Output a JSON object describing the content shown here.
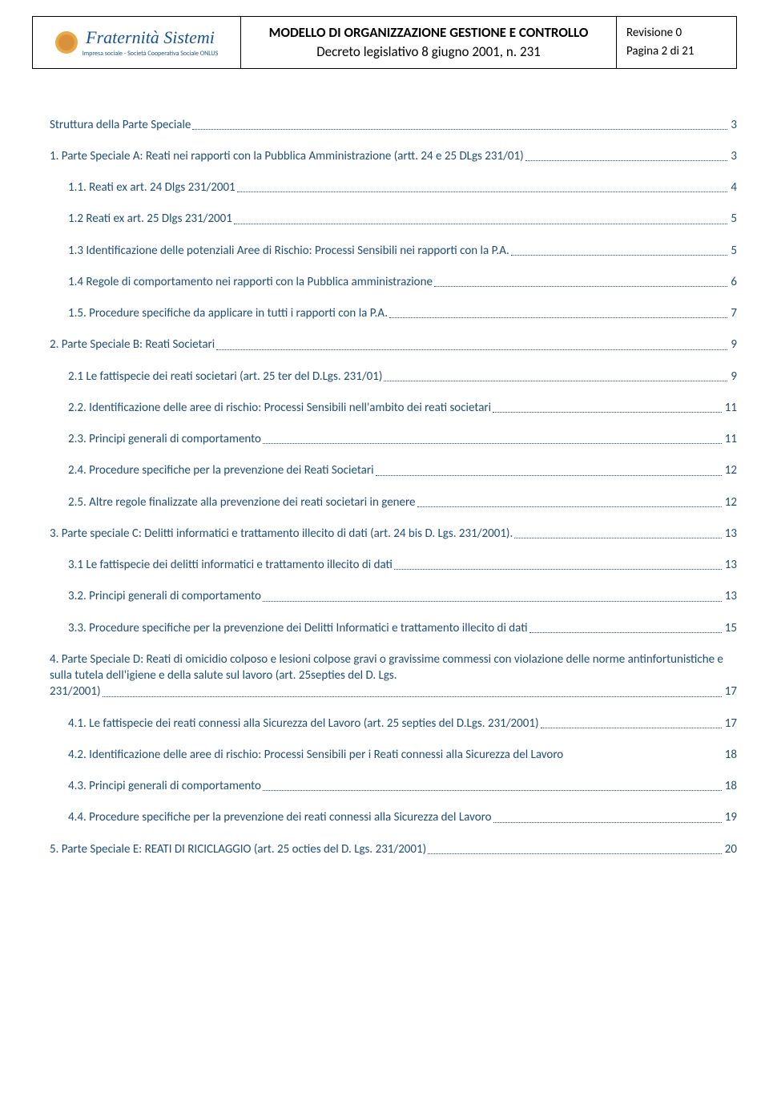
{
  "header": {
    "logo_main": "Fraternità Sistemi",
    "logo_sub": "Impresa sociale - Società Cooperativa Sociale ONLUS",
    "title_line1": "MODELLO DI ORGANIZZAZIONE GESTIONE E CONTROLLO",
    "title_line2": "Decreto legislativo 8 giugno 2001, n. 231",
    "revision": "Revisione  0",
    "page_info": "Pagina 2 di 21"
  },
  "toc": [
    {
      "level": 0,
      "title": "Struttura della Parte Speciale",
      "page": "3"
    },
    {
      "level": 0,
      "title": "1. Parte Speciale A: Reati nei rapporti con la Pubblica Amministrazione (artt. 24 e 25  DLgs  231/01)",
      "page": "3"
    },
    {
      "level": 1,
      "title": "1.1. Reati ex art. 24 Dlgs 231/2001",
      "page": "4"
    },
    {
      "level": 1,
      "title": "1.2 Reati ex art. 25 Dlgs 231/2001",
      "page": "5"
    },
    {
      "level": 1,
      "title": "1.3 Identificazione delle potenziali Aree di Rischio: Processi Sensibili nei rapporti con la P.A. ",
      "page": "5"
    },
    {
      "level": 1,
      "title": "1.4 Regole di comportamento nei rapporti con la Pubblica amministrazione",
      "page": "6"
    },
    {
      "level": 1,
      "title": "1.5. Procedure specifiche da applicare in tutti i rapporti con la P.A. ",
      "page": "7"
    },
    {
      "level": 0,
      "title": "2. Parte Speciale B: Reati Societari",
      "page": "9"
    },
    {
      "level": 1,
      "title": "2.1 Le fattispecie dei reati societari (art. 25 ter  del D.Lgs. 231/01)",
      "page": "9"
    },
    {
      "level": 1,
      "title": "2.2. Identificazione delle aree di rischio: Processi Sensibili nell'ambito dei reati societari",
      "page": "11"
    },
    {
      "level": 1,
      "title": "2.3. Principi generali di comportamento",
      "page": "11"
    },
    {
      "level": 1,
      "title": "2.4. Procedure specifiche per la prevenzione dei Reati Societari",
      "page": "12"
    },
    {
      "level": 1,
      "title": "2.5. Altre regole finalizzate alla prevenzione dei reati societari in genere",
      "page": "12"
    },
    {
      "level": 0,
      "title": "3. Parte speciale C: Delitti informatici e trattamento illecito di dati (art. 24 bis D. Lgs. 231/2001).",
      "page": "13"
    },
    {
      "level": 1,
      "title": "3.1 Le fattispecie dei delitti informatici e trattamento illecito di dati",
      "page": "13"
    },
    {
      "level": 1,
      "title": "3.2. Principi generali di comportamento",
      "page": "13"
    },
    {
      "level": 1,
      "title": "3.3. Procedure specifiche per la prevenzione dei Delitti Informatici e trattamento illecito di dati",
      "page": "15"
    },
    {
      "level": 0,
      "multi": true,
      "pretext": "4. Parte Speciale D: Reati di omicidio colposo e lesioni colpose gravi o gravissime commessi con violazione delle norme antinfortunistiche e sulla tutela dell'igiene e della salute sul lavoro (art. 25septies del D. Lgs.",
      "title": "231/2001)",
      "page": "17"
    },
    {
      "level": 1,
      "title": "4.1. Le fattispecie dei reati connessi alla Sicurezza del Lavoro (art. 25 septies del D.Lgs. 231/2001) ",
      "page": "17"
    },
    {
      "level": 1,
      "title": "4.2. Identificazione delle aree di rischio: Processi Sensibili per i Reati connessi alla Sicurezza del Lavoro",
      "page": "18",
      "nodots": true
    },
    {
      "level": 1,
      "title": "4.3. Principi generali di comportamento",
      "page": "18"
    },
    {
      "level": 1,
      "title": "4.4. Procedure specifiche per la prevenzione dei reati connessi alla Sicurezza del Lavoro",
      "page": "19"
    },
    {
      "level": 0,
      "title": "5. Parte Speciale E: REATI DI RICICLAGGIO  (art. 25 octies del D. Lgs. 231/2001)",
      "page": "20"
    }
  ]
}
